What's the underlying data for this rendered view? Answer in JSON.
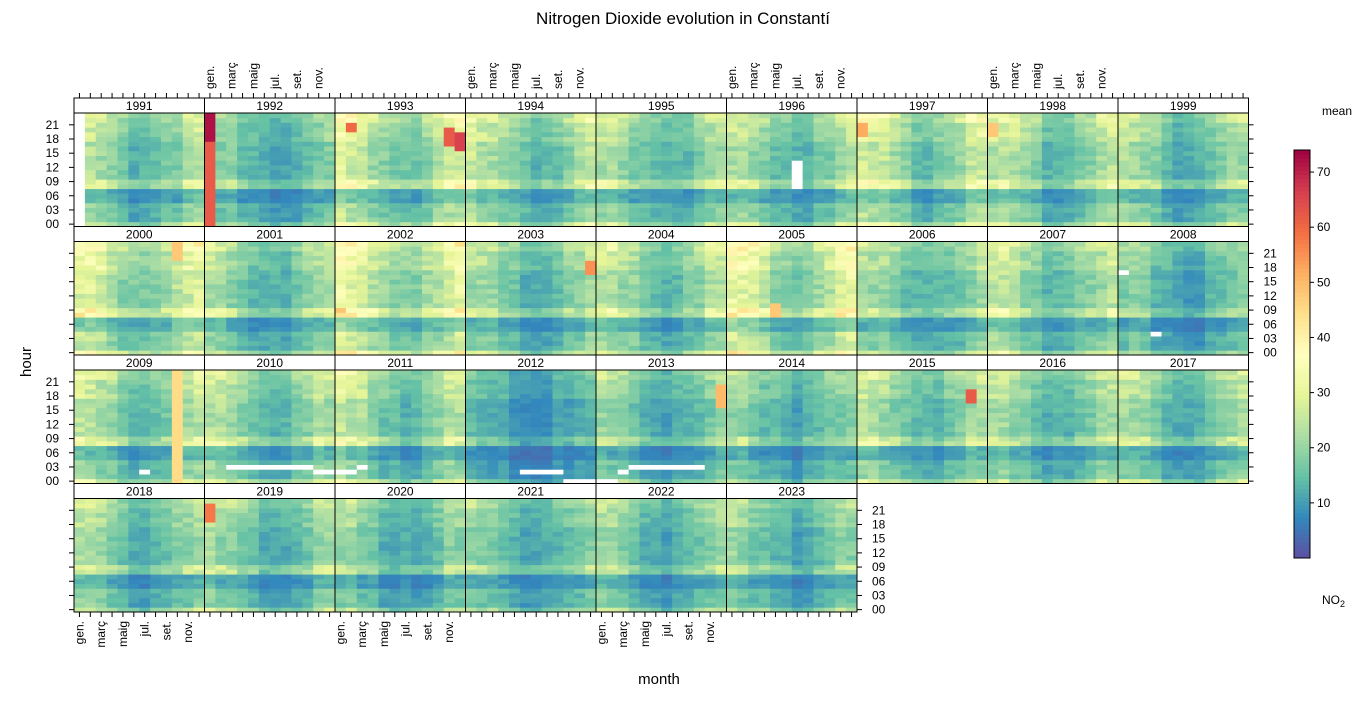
{
  "chart_data": {
    "type": "heatmap",
    "title": "Nitrogen Dioxide evolution in Constantí",
    "xlabel": "month",
    "ylabel": "hour",
    "years": [
      "1991",
      "1992",
      "1993",
      "1994",
      "1995",
      "1996",
      "1997",
      "1998",
      "1999",
      "2000",
      "2001",
      "2002",
      "2003",
      "2004",
      "2005",
      "2006",
      "2007",
      "2008",
      "2009",
      "2010",
      "2011",
      "2012",
      "2013",
      "2014",
      "2015",
      "2016",
      "2017",
      "2018",
      "2019",
      "2020",
      "2021",
      "2022",
      "2023"
    ],
    "x_tick_labels": [
      "gen.",
      "març",
      "maig",
      "jul.",
      "set.",
      "nov."
    ],
    "y_tick_labels": [
      "00",
      "03",
      "06",
      "09",
      "12",
      "15",
      "18",
      "21"
    ],
    "legend": {
      "title": "mean",
      "variable": "NO",
      "variable_subscript": "2",
      "ticks": [
        10,
        20,
        30,
        40,
        50,
        60,
        70
      ],
      "range": [
        0,
        74
      ],
      "colors": [
        "#5E4FA2",
        "#3288BD",
        "#66C2A5",
        "#ABDDA4",
        "#E6F598",
        "#FFFFBF",
        "#FEE08B",
        "#FDAE61",
        "#F46D43",
        "#D53E4F",
        "#9E0142"
      ]
    },
    "baseline_mean_by_year": {
      "1991": 19,
      "1992": 16,
      "1993": 23,
      "1994": 20,
      "1995": 18,
      "1996": 19,
      "1997": 22,
      "1998": 20,
      "1999": 18,
      "2000": 24,
      "2001": 18,
      "2002": 25,
      "2003": 18,
      "2004": 20,
      "2005": 25,
      "2006": 18,
      "2007": 20,
      "2008": 15,
      "2009": 20,
      "2010": 19,
      "2011": 20,
      "2012": 12,
      "2013": 16,
      "2014": 16,
      "2015": 19,
      "2016": 18,
      "2017": 18,
      "2018": 18,
      "2019": 17,
      "2020": 16,
      "2021": 16,
      "2022": 16,
      "2023": 16
    },
    "hotspots": [
      {
        "year": "1992",
        "month": 1,
        "hours": [
          0,
          23
        ],
        "value": 62
      },
      {
        "year": "1992",
        "month": 1,
        "hours": [
          18,
          23
        ],
        "value": 72
      },
      {
        "year": "1993",
        "month": 2,
        "hours": [
          20,
          21
        ],
        "value": 60
      },
      {
        "year": "1993",
        "month": 11,
        "hours": [
          17,
          20
        ],
        "value": 62
      },
      {
        "year": "1993",
        "month": 12,
        "hours": [
          16,
          19
        ],
        "value": 66
      },
      {
        "year": "1997",
        "month": 1,
        "hours": [
          19,
          21
        ],
        "value": 52
      },
      {
        "year": "1998",
        "month": 1,
        "hours": [
          19,
          21
        ],
        "value": 48
      },
      {
        "year": "2000",
        "month": 10,
        "hours": [
          20,
          23
        ],
        "value": 48
      },
      {
        "year": "2003",
        "month": 12,
        "hours": [
          17,
          19
        ],
        "value": 55
      },
      {
        "year": "2005",
        "month": 5,
        "hours": [
          8,
          10
        ],
        "value": 48
      },
      {
        "year": "2009",
        "month": 10,
        "hours": [
          0,
          23
        ],
        "value": 45
      },
      {
        "year": "2013",
        "month": 12,
        "hours": [
          16,
          20
        ],
        "value": 50
      },
      {
        "year": "2015",
        "month": 11,
        "hours": [
          17,
          19
        ],
        "value": 62
      },
      {
        "year": "2019",
        "month": 1,
        "hours": [
          19,
          22
        ],
        "value": 58
      }
    ],
    "missing": [
      {
        "year": "1991",
        "month": 1,
        "hours": [
          0,
          23
        ]
      },
      {
        "year": "1996",
        "month": 7,
        "hours": [
          8,
          13
        ]
      },
      {
        "year": "2008",
        "month": 4,
        "hours": [
          4,
          4
        ]
      },
      {
        "year": "2009",
        "month": 7,
        "hours": [
          2,
          2
        ]
      },
      {
        "year": "2010",
        "month": 3,
        "hours": [
          3,
          3
        ]
      },
      {
        "year": "2010",
        "month": 4,
        "hours": [
          3,
          3
        ]
      },
      {
        "year": "2010",
        "month": 5,
        "hours": [
          3,
          3
        ]
      },
      {
        "year": "2010",
        "month": 6,
        "hours": [
          3,
          3
        ]
      },
      {
        "year": "2010",
        "month": 7,
        "hours": [
          3,
          3
        ]
      },
      {
        "year": "2010",
        "month": 8,
        "hours": [
          3,
          3
        ]
      },
      {
        "year": "2010",
        "month": 9,
        "hours": [
          3,
          3
        ]
      },
      {
        "year": "2010",
        "month": 10,
        "hours": [
          3,
          3
        ]
      },
      {
        "year": "2010",
        "month": 11,
        "hours": [
          2,
          2
        ]
      },
      {
        "year": "2010",
        "month": 12,
        "hours": [
          2,
          2
        ]
      },
      {
        "year": "2011",
        "month": 1,
        "hours": [
          2,
          2
        ]
      },
      {
        "year": "2011",
        "month": 2,
        "hours": [
          2,
          2
        ]
      },
      {
        "year": "2011",
        "month": 3,
        "hours": [
          3,
          3
        ]
      },
      {
        "year": "2012",
        "month": 6,
        "hours": [
          2,
          2
        ]
      },
      {
        "year": "2012",
        "month": 7,
        "hours": [
          2,
          2
        ]
      },
      {
        "year": "2012",
        "month": 8,
        "hours": [
          2,
          2
        ]
      },
      {
        "year": "2012",
        "month": 9,
        "hours": [
          2,
          2
        ]
      },
      {
        "year": "2012",
        "month": 10,
        "hours": [
          0,
          0
        ]
      },
      {
        "year": "2012",
        "month": 11,
        "hours": [
          0,
          0
        ]
      },
      {
        "year": "2012",
        "month": 12,
        "hours": [
          0,
          0
        ]
      },
      {
        "year": "2013",
        "month": 1,
        "hours": [
          0,
          0
        ]
      },
      {
        "year": "2013",
        "month": 2,
        "hours": [
          0,
          0
        ]
      },
      {
        "year": "2013",
        "month": 3,
        "hours": [
          2,
          2
        ]
      },
      {
        "year": "2013",
        "month": 4,
        "hours": [
          3,
          3
        ]
      },
      {
        "year": "2013",
        "month": 5,
        "hours": [
          3,
          3
        ]
      },
      {
        "year": "2013",
        "month": 6,
        "hours": [
          3,
          3
        ]
      },
      {
        "year": "2013",
        "month": 7,
        "hours": [
          3,
          3
        ]
      },
      {
        "year": "2013",
        "month": 8,
        "hours": [
          3,
          3
        ]
      },
      {
        "year": "2013",
        "month": 9,
        "hours": [
          3,
          3
        ]
      },
      {
        "year": "2013",
        "month": 10,
        "hours": [
          3,
          3
        ]
      },
      {
        "year": "2008",
        "month": 1,
        "hours": [
          17,
          17
        ]
      }
    ]
  }
}
